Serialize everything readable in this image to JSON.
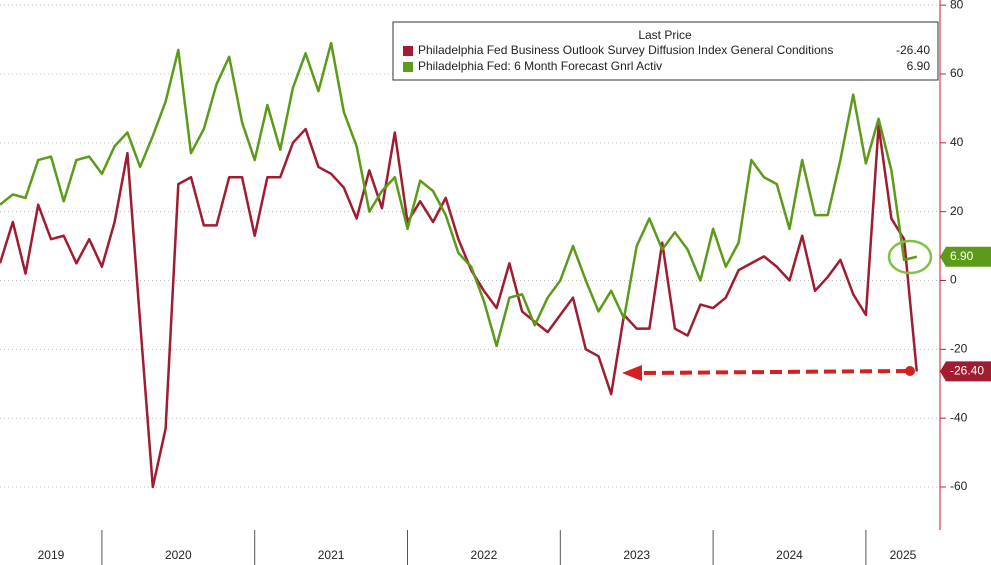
{
  "chart_data": {
    "type": "line",
    "legend_title": "Last Price",
    "x": [
      2019.333,
      2019.417,
      2019.5,
      2019.583,
      2019.667,
      2019.75,
      2019.833,
      2019.917,
      2020.0,
      2020.083,
      2020.167,
      2020.25,
      2020.333,
      2020.417,
      2020.5,
      2020.583,
      2020.667,
      2020.75,
      2020.833,
      2020.917,
      2021.0,
      2021.083,
      2021.167,
      2021.25,
      2021.333,
      2021.417,
      2021.5,
      2021.583,
      2021.667,
      2021.75,
      2021.833,
      2021.917,
      2022.0,
      2022.083,
      2022.167,
      2022.25,
      2022.333,
      2022.417,
      2022.5,
      2022.583,
      2022.667,
      2022.75,
      2022.833,
      2022.917,
      2023.0,
      2023.083,
      2023.167,
      2023.25,
      2023.333,
      2023.417,
      2023.5,
      2023.583,
      2023.667,
      2023.75,
      2023.833,
      2023.917,
      2024.0,
      2024.083,
      2024.167,
      2024.25,
      2024.333,
      2024.417,
      2024.5,
      2024.583,
      2024.667,
      2024.75,
      2024.833,
      2024.917,
      2025.0,
      2025.083,
      2025.167,
      2025.25,
      2025.333
    ],
    "series": [
      {
        "name": "Philadelphia Fed Business Outlook Survey Diffusion Index General Conditions",
        "color": "#a01c30",
        "last_label": "-26.40",
        "values": [
          5,
          17,
          2,
          22,
          12,
          13,
          5,
          12,
          4,
          17,
          37,
          -12,
          -60,
          -43,
          28,
          30,
          16,
          16,
          30,
          30,
          13,
          30,
          30,
          40,
          44,
          33,
          31,
          27,
          18,
          32,
          21,
          43,
          17,
          23,
          17,
          24,
          12,
          3,
          -3,
          -8,
          5,
          -9,
          -12,
          -15,
          -10,
          -5,
          -20,
          -22,
          -33,
          -10,
          -14,
          -14,
          11,
          -14,
          -16,
          -7,
          -8,
          -5,
          3,
          5,
          7,
          4,
          0,
          13,
          -3,
          1,
          6,
          -4,
          -10,
          45,
          18,
          12,
          -26.4
        ]
      },
      {
        "name": "Philadelphia Fed: 6 Month Forecast Gnrl Activ",
        "color": "#5c9a1a",
        "last_label": "6.90",
        "values": [
          22,
          25,
          24,
          35,
          36,
          23,
          35,
          36,
          31,
          39,
          43,
          33,
          42,
          52,
          67,
          37,
          44,
          57,
          65,
          46,
          35,
          51,
          38,
          56,
          66,
          55,
          69,
          49,
          39,
          20,
          26,
          30,
          15,
          29,
          26,
          19,
          8,
          4,
          -6,
          -19,
          -5,
          -4,
          -13,
          -5,
          0,
          10,
          0,
          -9,
          -3,
          -11,
          10,
          18,
          9,
          14,
          9,
          0,
          15,
          4,
          11,
          35,
          30,
          28,
          15,
          35,
          19,
          19,
          35,
          54,
          34,
          47,
          32,
          6,
          6.9
        ]
      }
    ],
    "xlim": [
      2019.333,
      2025.485
    ],
    "xticks": [
      2020,
      2021,
      2022,
      2023,
      2024,
      2025
    ],
    "year_labels": [
      "2019",
      "2020",
      "2021",
      "2022",
      "2023",
      "2024",
      "2025"
    ],
    "ylim": [
      -72.5,
      81.5
    ],
    "yticks": [
      -60,
      -40,
      -20,
      0,
      20,
      40,
      60,
      80
    ],
    "grid": true,
    "axis_color": "#c0202f"
  }
}
